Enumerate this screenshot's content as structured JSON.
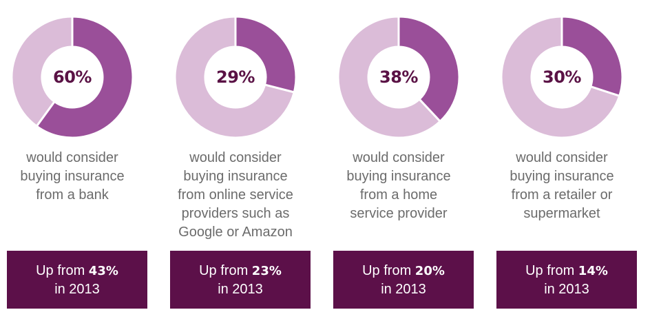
{
  "colors": {
    "share": "#9a4f99",
    "remainder": "#dbbcd8",
    "box_bg": "#5c1049",
    "pct_text": "#5a1245",
    "desc_text": "#6b6b6b"
  },
  "chart_data": [
    {
      "type": "pie",
      "value": 60,
      "label": "60%",
      "description_lines": [
        "would consider",
        "buying insurance",
        "from a bank"
      ],
      "footnote": {
        "prefix": "Up from",
        "value": "43%",
        "suffix": "in 2013"
      }
    },
    {
      "type": "pie",
      "value": 29,
      "label": "29%",
      "description_lines": [
        "would consider",
        "buying insurance",
        "from online service",
        "providers such as",
        "Google or Amazon"
      ],
      "footnote": {
        "prefix": "Up from",
        "value": "23%",
        "suffix": "in 2013"
      }
    },
    {
      "type": "pie",
      "value": 38,
      "label": "38%",
      "description_lines": [
        "would consider",
        "buying insurance",
        "from a home",
        "service provider"
      ],
      "footnote": {
        "prefix": "Up from",
        "value": "20%",
        "suffix": "in 2013"
      }
    },
    {
      "type": "pie",
      "value": 30,
      "label": "30%",
      "description_lines": [
        "would consider",
        "buying insurance",
        "from a retailer or",
        "supermarket"
      ],
      "footnote": {
        "prefix": "Up from",
        "value": "14%",
        "suffix": "in 2013"
      }
    }
  ]
}
